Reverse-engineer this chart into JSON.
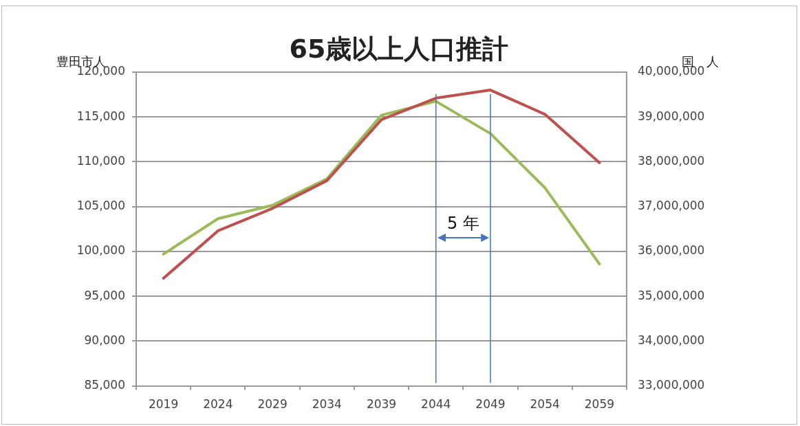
{
  "chart_data": {
    "type": "line",
    "title": "65歳以上人口推計",
    "ylabel": "豊田市人",
    "y2label": "国　人",
    "categories": [
      "2019",
      "2024",
      "2029",
      "2034",
      "2039",
      "2044",
      "2049",
      "2054",
      "2059"
    ],
    "series": [
      {
        "color": "#c0504d",
        "values": [
          97000,
          102300,
          104800,
          107900,
          114700,
          117100,
          118000,
          115300,
          109900
        ]
      },
      {
        "color": "#9bbb59",
        "axis": "y2",
        "values": [
          35940000,
          36730000,
          37030000,
          37620000,
          39040000,
          39350000,
          38630000,
          37420000,
          35720000
        ]
      }
    ],
    "ylim": [
      85000,
      120000
    ],
    "yticks": [
      {
        "value": 85000,
        "label": "85,000"
      },
      {
        "value": 90000,
        "label": "90,000"
      },
      {
        "value": 95000,
        "label": "95,000"
      },
      {
        "value": 100000,
        "label": "100,000"
      },
      {
        "value": 105000,
        "label": "105,000"
      },
      {
        "value": 110000,
        "label": "110,000"
      },
      {
        "value": 115000,
        "label": "115,000"
      },
      {
        "value": 120000,
        "label": "120,000"
      }
    ],
    "y2lim": [
      33000000,
      40000000
    ],
    "y2ticks": [
      {
        "value": 33000000,
        "label": "33,000,000"
      },
      {
        "value": 34000000,
        "label": "34,000,000"
      },
      {
        "value": 35000000,
        "label": "35,000,000"
      },
      {
        "value": 36000000,
        "label": "36,000,000"
      },
      {
        "value": 37000000,
        "label": "37,000,000"
      },
      {
        "value": 38000000,
        "label": "38,000,000"
      },
      {
        "value": 39000000,
        "label": "39,000,000"
      },
      {
        "value": 40000000,
        "label": "40,000,000"
      }
    ],
    "grid": "y",
    "legend": false,
    "marker": "none",
    "line_style": "solid",
    "ref_lines": [
      {
        "axis": "x",
        "value": "2044",
        "color": "#4472c4"
      },
      {
        "axis": "x",
        "value": "2049",
        "color": "#4472c4"
      }
    ],
    "annotations": [
      "5 年"
    ]
  }
}
